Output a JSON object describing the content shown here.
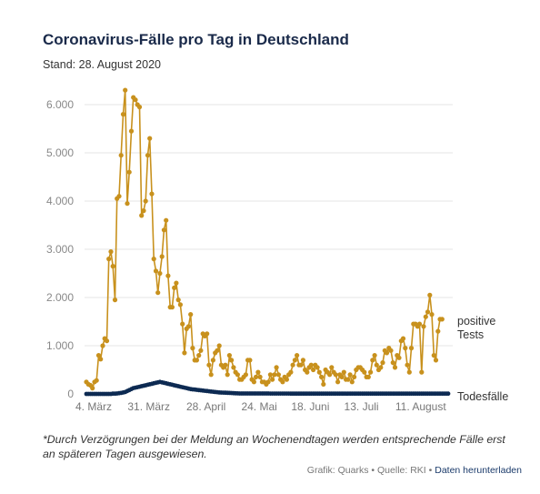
{
  "header": {
    "title": "Coronavirus-Fälle pro Tag in Deutschland",
    "subtitle": "Stand: 28. August 2020"
  },
  "chart_data": {
    "type": "line",
    "title": "Coronavirus-Fälle pro Tag in Deutschland",
    "xlabel": "",
    "ylabel": "",
    "ylim": [
      0,
      6400
    ],
    "y_ticks": [
      0,
      1000,
      2000,
      3000,
      4000,
      5000,
      6000
    ],
    "y_tick_labels": [
      "0",
      "1.000",
      "2.000",
      "3.000",
      "4.000",
      "5.000",
      "6.000"
    ],
    "x_tick_labels": [
      "4. März",
      "31. März",
      "28. April",
      "24. Mai",
      "18. Juni",
      "13. Juli",
      "11. August"
    ],
    "x_tick_days": [
      0,
      27,
      55,
      81,
      106,
      131,
      160
    ],
    "x_range_days": [
      0,
      177
    ],
    "grid": "horizontal",
    "legend": "direct labels at right end of lines",
    "series": [
      {
        "name": "positive Tests",
        "color": "#c8911d",
        "values": [
          250,
          200,
          180,
          120,
          250,
          280,
          800,
          720,
          1000,
          1150,
          1100,
          2800,
          2950,
          2650,
          1950,
          4050,
          4100,
          4950,
          5800,
          6300,
          3950,
          4600,
          5450,
          6150,
          6100,
          6000,
          5950,
          3700,
          3800,
          4000,
          4950,
          5300,
          4150,
          2800,
          2550,
          2100,
          2500,
          2850,
          3400,
          3600,
          2450,
          1800,
          1800,
          2200,
          2300,
          1950,
          1850,
          1450,
          850,
          1350,
          1400,
          1650,
          950,
          700,
          700,
          800,
          900,
          1250,
          1200,
          1250,
          600,
          400,
          700,
          850,
          900,
          1000,
          600,
          550,
          600,
          400,
          800,
          700,
          550,
          450,
          400,
          300,
          300,
          350,
          400,
          700,
          700,
          300,
          250,
          350,
          450,
          350,
          250,
          250,
          200,
          250,
          400,
          300,
          400,
          550,
          400,
          300,
          250,
          350,
          300,
          400,
          450,
          600,
          700,
          800,
          600,
          600,
          700,
          500,
          450,
          550,
          600,
          500,
          600,
          550,
          450,
          350,
          200,
          500,
          450,
          400,
          550,
          450,
          400,
          250,
          400,
          350,
          450,
          300,
          300,
          400,
          250,
          350,
          500,
          550,
          550,
          500,
          450,
          350,
          350,
          450,
          700,
          800,
          600,
          500,
          550,
          650,
          900,
          850,
          950,
          900,
          650,
          550,
          800,
          750,
          1100,
          1150,
          950,
          600,
          450,
          950,
          1450,
          1450,
          1400,
          1450,
          450,
          1400,
          1600,
          1700,
          2050,
          1650,
          800,
          700,
          1300,
          1550,
          1550
        ]
      },
      {
        "name": "Todesfälle",
        "color": "#0d2a52",
        "values": [
          0,
          0,
          0,
          0,
          0,
          0,
          0,
          0,
          0,
          0,
          0,
          0,
          0,
          5,
          5,
          10,
          15,
          20,
          30,
          40,
          60,
          80,
          100,
          120,
          130,
          140,
          150,
          160,
          170,
          180,
          190,
          200,
          210,
          220,
          230,
          240,
          250,
          240,
          230,
          220,
          210,
          200,
          190,
          180,
          170,
          160,
          150,
          140,
          130,
          120,
          110,
          100,
          95,
          90,
          85,
          80,
          75,
          70,
          65,
          60,
          55,
          50,
          45,
          40,
          35,
          30,
          28,
          26,
          24,
          22,
          20,
          18,
          16,
          14,
          12,
          10,
          10,
          10,
          10,
          10,
          10,
          10,
          10,
          10,
          10,
          10,
          10,
          10,
          10,
          10,
          8,
          8,
          8,
          8,
          8,
          8,
          8,
          8,
          8,
          8,
          6,
          6,
          6,
          6,
          6,
          6,
          6,
          6,
          6,
          6,
          5,
          5,
          5,
          5,
          5,
          5,
          5,
          5,
          5,
          5,
          5,
          5,
          5,
          5,
          5,
          5,
          5,
          5,
          5,
          5,
          5,
          5,
          5,
          5,
          5,
          5,
          5,
          5,
          5,
          5,
          5,
          5,
          5,
          5,
          5,
          5,
          5,
          5,
          5,
          5,
          5,
          5,
          5,
          5,
          5,
          5,
          5,
          5,
          5,
          5,
          5,
          5,
          5,
          5,
          5,
          5,
          5,
          5,
          5,
          5,
          5,
          5,
          5,
          5,
          5,
          5,
          5,
          5
        ]
      }
    ]
  },
  "labels": {
    "positive_line1": "positive",
    "positive_line2": "Tests",
    "deaths": "Todesfälle"
  },
  "footer": {
    "note": "*Durch Verzögrungen bei der Meldung an Wochenendtagen werden entsprechende Fälle erst an späteren Tagen ausgewiesen.",
    "credit_grafik": "Grafik: Quarks",
    "separator": "•",
    "credit_quelle": "Quelle: RKI",
    "download_link": "Daten herunterladen"
  }
}
